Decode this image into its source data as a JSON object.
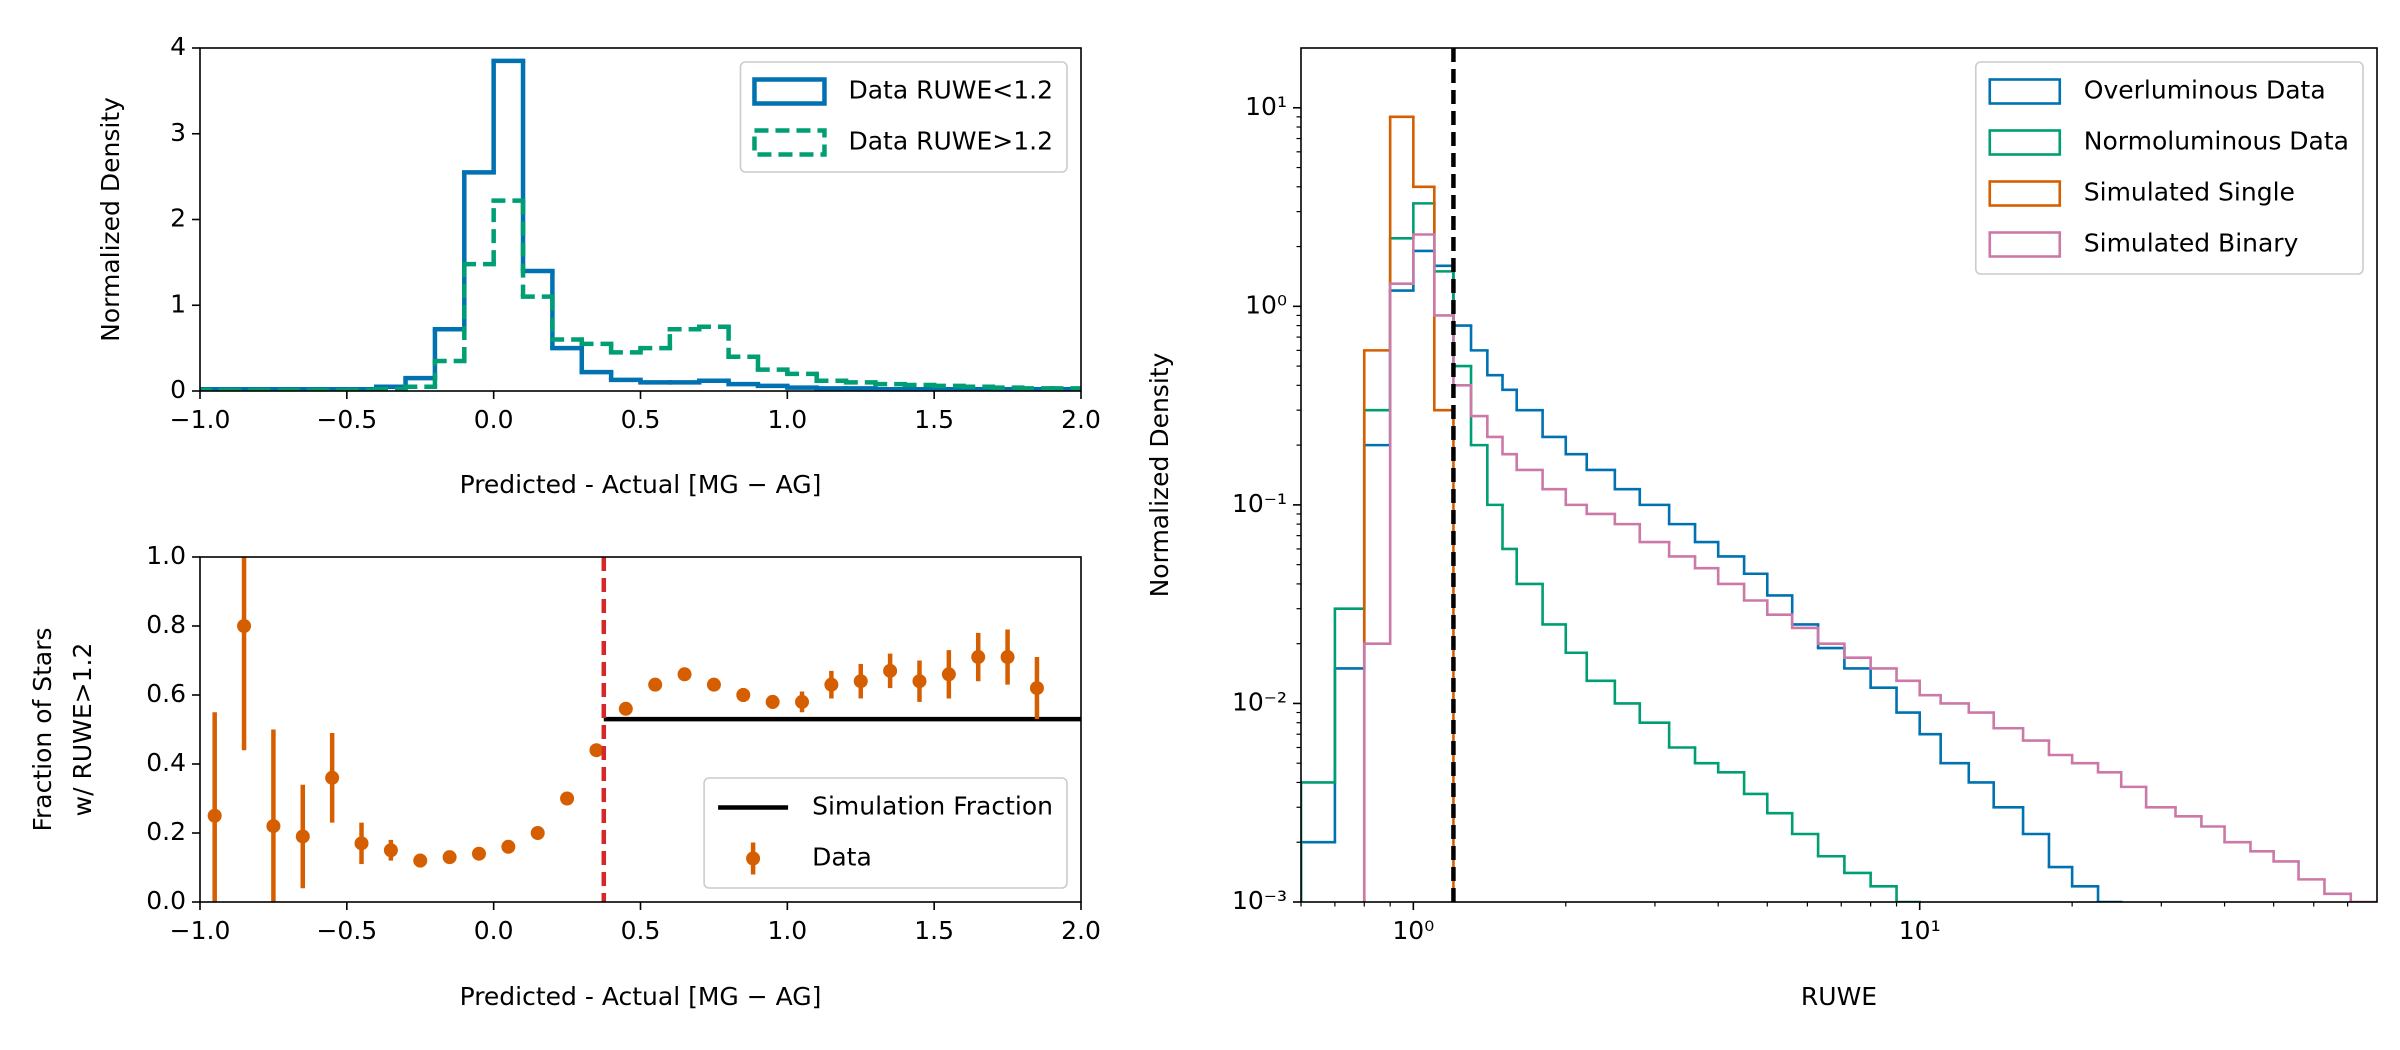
{
  "chart_data": [
    {
      "type": "histogram",
      "xlabel": "Predicted - Actual [MG − AG]",
      "ylabel": "Normalized Density",
      "xlim": [
        -1,
        2
      ],
      "ylim": [
        0,
        4
      ],
      "xticks": [
        {
          "value": -1,
          "label": "−1.0"
        },
        {
          "value": -0.5,
          "label": "−0.5"
        },
        {
          "value": 0,
          "label": "0.0"
        },
        0.5,
        {
          "value": 1,
          "label": "1.0"
        },
        1.5,
        {
          "value": 2,
          "label": "2.0"
        }
      ],
      "yticks": [
        0,
        1,
        2,
        3,
        4
      ],
      "legend": "upper right",
      "bins": [
        -1,
        -0.9,
        -0.8,
        -0.7,
        -0.6,
        -0.5,
        -0.4,
        -0.3,
        -0.2,
        -0.1,
        0,
        0.1,
        0.2,
        0.3,
        0.4,
        0.5,
        0.6,
        0.7,
        0.8,
        0.9,
        1,
        1.1,
        1.2,
        1.3,
        1.4,
        1.5,
        1.6,
        1.7,
        1.8,
        1.9,
        2
      ],
      "series": [
        {
          "name": "Data RUWE<1.2",
          "color": "#0072b2",
          "linestyle": "solid",
          "values": [
            0.02,
            0.02,
            0.02,
            0.02,
            0.02,
            0.02,
            0.05,
            0.15,
            0.72,
            2.55,
            3.85,
            1.4,
            0.5,
            0.22,
            0.13,
            0.1,
            0.1,
            0.12,
            0.08,
            0.06,
            0.04,
            0.03,
            0.03,
            0.02,
            0.02,
            0.02,
            0.02,
            0.02,
            0.02,
            0.02
          ]
        },
        {
          "name": "Data RUWE>1.2",
          "color": "#009e73",
          "linestyle": "dashed",
          "values": [
            0.01,
            0.01,
            0.01,
            0.01,
            0.01,
            0.01,
            0.02,
            0.05,
            0.35,
            1.48,
            2.22,
            1.1,
            0.6,
            0.55,
            0.45,
            0.5,
            0.72,
            0.75,
            0.4,
            0.25,
            0.2,
            0.12,
            0.1,
            0.08,
            0.07,
            0.06,
            0.05,
            0.04,
            0.03,
            0.03
          ]
        }
      ]
    },
    {
      "type": "errorbar",
      "xlabel": "Predicted - Actual [MG − AG]",
      "ylabel": [
        "Fraction of Stars",
        "w/ RUWE>1.2"
      ],
      "xlim": [
        -1,
        2
      ],
      "ylim": [
        0,
        1
      ],
      "xticks": [
        {
          "value": -1,
          "label": "−1.0"
        },
        {
          "value": -0.5,
          "label": "−0.5"
        },
        {
          "value": 0,
          "label": "0.0"
        },
        0.5,
        {
          "value": 1,
          "label": "1.0"
        },
        1.5,
        {
          "value": 2,
          "label": "2.0"
        }
      ],
      "yticks": [
        {
          "value": 0,
          "label": "0.0"
        },
        0.2,
        0.4,
        0.6,
        0.8,
        {
          "value": 1,
          "label": "1.0"
        }
      ],
      "legend": "lower right",
      "vline": 0.375,
      "vline_color": "#d62728",
      "series": [
        {
          "name": "Simulation Fraction",
          "color": "#000000",
          "kind": "line",
          "x": [
            0.375,
            2
          ],
          "values": [
            0.53,
            0.53
          ]
        },
        {
          "name": "Data",
          "color": "#d55e00",
          "kind": "errorbar",
          "x": [
            -0.95,
            -0.85,
            -0.75,
            -0.65,
            -0.55,
            -0.45,
            -0.35,
            -0.25,
            -0.15,
            -0.05,
            0.05,
            0.15,
            0.25,
            0.35,
            0.45,
            0.55,
            0.65,
            0.75,
            0.85,
            0.95,
            1.05,
            1.15,
            1.25,
            1.35,
            1.45,
            1.55,
            1.65,
            1.75,
            1.85
          ],
          "values": [
            0.25,
            0.8,
            0.22,
            0.19,
            0.36,
            0.17,
            0.15,
            0.12,
            0.13,
            0.14,
            0.16,
            0.2,
            0.3,
            0.44,
            0.56,
            0.63,
            0.66,
            0.63,
            0.6,
            0.58,
            0.58,
            0.63,
            0.64,
            0.67,
            0.64,
            0.66,
            0.71,
            0.71,
            0.62
          ],
          "errors": [
            0.3,
            0.36,
            0.28,
            0.15,
            0.13,
            0.06,
            0.03,
            0.02,
            0.015,
            0.01,
            0.01,
            0.01,
            0.01,
            0.015,
            0.015,
            0.015,
            0.015,
            0.015,
            0.02,
            0.02,
            0.03,
            0.04,
            0.05,
            0.05,
            0.06,
            0.07,
            0.07,
            0.08,
            0.09
          ]
        }
      ]
    },
    {
      "type": "histogram",
      "xlabel": "RUWE",
      "ylabel": "Normalized Density",
      "xscale": "log",
      "yscale": "log",
      "xlim": [
        0.6,
        80
      ],
      "ylim": [
        0.001,
        20
      ],
      "xticks": [
        {
          "value": 1,
          "label": "10⁰"
        },
        {
          "value": 10,
          "label": "10¹"
        }
      ],
      "yticks": [
        {
          "value": 0.001,
          "label": "10⁻³"
        },
        {
          "value": 0.01,
          "label": "10⁻²"
        },
        {
          "value": 0.1,
          "label": "10⁻¹"
        },
        {
          "value": 1,
          "label": "10⁰"
        },
        {
          "value": 10,
          "label": "10¹"
        }
      ],
      "legend": "upper right",
      "vline": 1.2,
      "vline_color": "#000000",
      "bins": [
        0.6,
        0.7,
        0.8,
        0.9,
        1.0,
        1.1,
        1.2,
        1.3,
        1.4,
        1.5,
        1.6,
        1.8,
        2.0,
        2.2,
        2.5,
        2.8,
        3.2,
        3.6,
        4.0,
        4.5,
        5.0,
        5.6,
        6.3,
        7.1,
        8.0,
        9.0,
        10,
        11,
        12.5,
        14,
        16,
        18,
        20,
        22.5,
        25,
        28,
        32,
        36,
        40,
        45,
        50,
        56,
        63,
        71,
        80
      ],
      "series": [
        {
          "name": "Overluminous Data",
          "color": "#0072b2",
          "linestyle": "solid",
          "values": [
            0.002,
            0.015,
            0.2,
            1.2,
            1.9,
            1.6,
            0.8,
            0.6,
            0.45,
            0.38,
            0.3,
            0.22,
            0.18,
            0.15,
            0.12,
            0.1,
            0.08,
            0.065,
            0.055,
            0.045,
            0.035,
            0.025,
            0.019,
            0.015,
            0.012,
            0.009,
            0.007,
            0.005,
            0.004,
            0.003,
            0.0022,
            0.0015,
            0.0012,
            0.001,
            null,
            null,
            null,
            null,
            null,
            null,
            null,
            null,
            null,
            null
          ]
        },
        {
          "name": "Normoluminous Data",
          "color": "#009e73",
          "linestyle": "solid",
          "values": [
            0.004,
            0.03,
            0.3,
            2.2,
            3.3,
            1.5,
            0.5,
            0.2,
            0.1,
            0.06,
            0.04,
            0.025,
            0.018,
            0.013,
            0.01,
            0.008,
            0.006,
            0.005,
            0.0045,
            0.0035,
            0.0028,
            0.0022,
            0.0017,
            0.0014,
            0.0012,
            0.001,
            null,
            null,
            null,
            null,
            null,
            null,
            null,
            null,
            null,
            null,
            null,
            null,
            null,
            null,
            null,
            null,
            null,
            null
          ]
        },
        {
          "name": "Simulated Single",
          "color": "#d55e00",
          "linestyle": "solid",
          "values": [
            null,
            null,
            0.6,
            9,
            4,
            0.3,
            null,
            null,
            null,
            null,
            null,
            null,
            null,
            null,
            null,
            null,
            null,
            null,
            null,
            null,
            null,
            null,
            null,
            null,
            null,
            null,
            null,
            null,
            null,
            null,
            null,
            null,
            null,
            null,
            null,
            null,
            null,
            null,
            null,
            null,
            null,
            null,
            null,
            null
          ]
        },
        {
          "name": "Simulated Binary",
          "color": "#cc79a7",
          "linestyle": "solid",
          "values": [
            null,
            null,
            0.02,
            1.3,
            2.3,
            0.9,
            0.4,
            0.28,
            0.22,
            0.18,
            0.15,
            0.12,
            0.1,
            0.09,
            0.08,
            0.065,
            0.055,
            0.048,
            0.04,
            0.033,
            0.028,
            0.024,
            0.02,
            0.017,
            0.015,
            0.013,
            0.011,
            0.01,
            0.009,
            0.0075,
            0.0065,
            0.0055,
            0.005,
            0.0045,
            0.0038,
            0.003,
            0.0027,
            0.0024,
            0.002,
            0.0018,
            0.0016,
            0.0013,
            0.0011,
            0.001
          ]
        }
      ]
    }
  ]
}
